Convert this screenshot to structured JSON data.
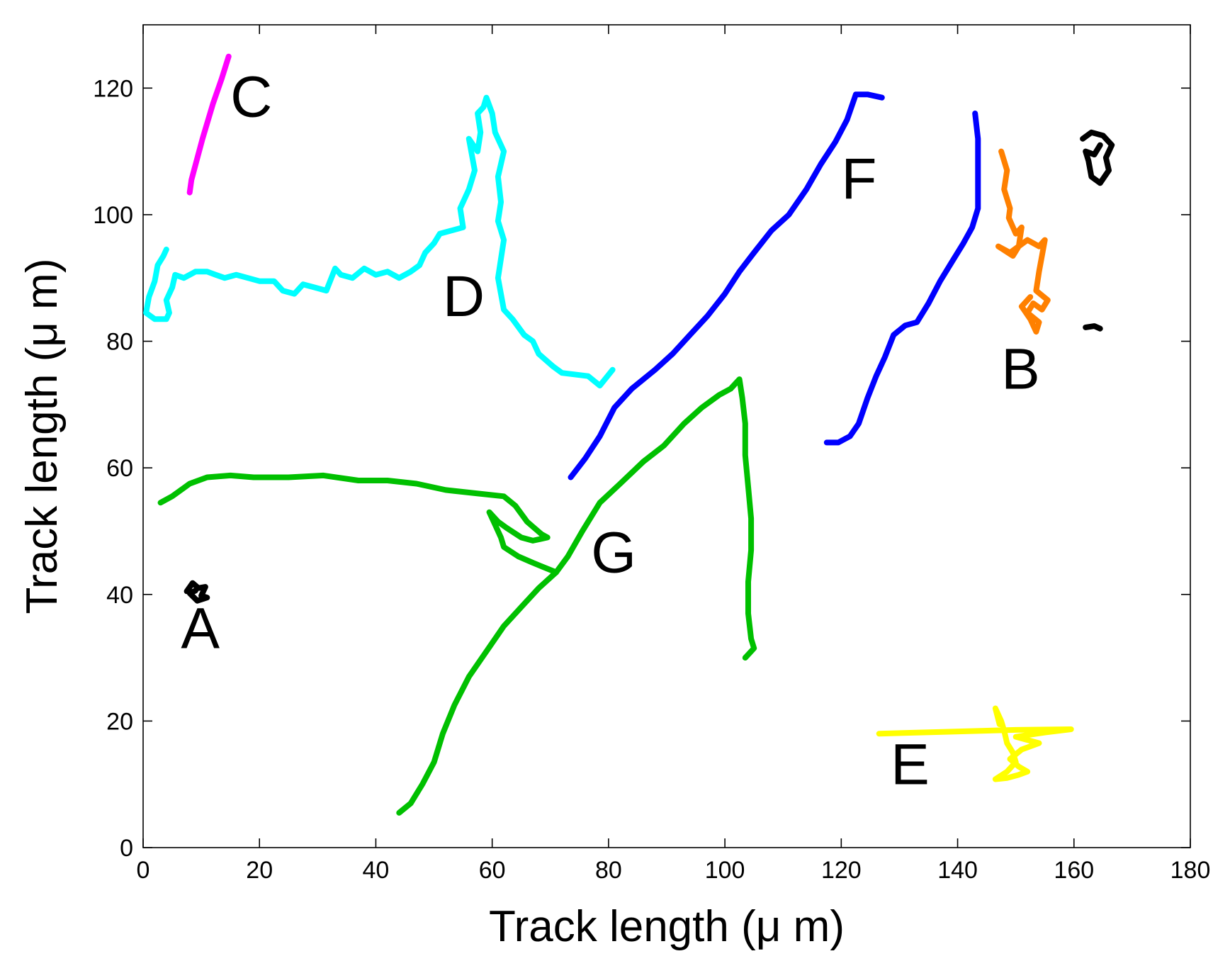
{
  "chart_data": {
    "type": "line",
    "title": "",
    "xlabel": "Track length (μ m)",
    "ylabel": "Track length (μ m)",
    "xlim": [
      0,
      180
    ],
    "ylim": [
      0,
      130
    ],
    "xticks": [
      0,
      20,
      40,
      60,
      80,
      100,
      120,
      140,
      160,
      180
    ],
    "yticks": [
      0,
      20,
      40,
      60,
      80,
      100,
      120
    ],
    "grid": false,
    "legend": "none",
    "series": [
      {
        "name": "A",
        "color": "#000000",
        "label_at": [
          6.5,
          31.5
        ],
        "points": [
          [
            7.5,
            40.5
          ],
          [
            8.5,
            41.8
          ],
          [
            9.5,
            41
          ],
          [
            10.7,
            41.2
          ],
          [
            10,
            39.8
          ],
          [
            11,
            39.5
          ],
          [
            9.3,
            39
          ],
          [
            8,
            40.2
          ],
          [
            9,
            40.6
          ]
        ]
      },
      {
        "name": "B",
        "color": "#ff8000",
        "label_at": [
          147.5,
          72.5
        ],
        "points": [
          [
            147.5,
            110
          ],
          [
            148.5,
            107
          ],
          [
            148,
            104
          ],
          [
            149,
            101
          ],
          [
            148.8,
            99.5
          ],
          [
            150,
            97
          ],
          [
            151,
            98
          ],
          [
            150.5,
            95
          ],
          [
            149.5,
            93.5
          ],
          [
            147,
            95
          ],
          [
            149,
            94
          ],
          [
            152,
            96
          ],
          [
            154,
            95
          ],
          [
            155,
            96
          ],
          [
            154,
            91
          ],
          [
            153.5,
            88
          ],
          [
            155.5,
            86.5
          ],
          [
            154.5,
            85
          ],
          [
            153,
            86
          ],
          [
            152,
            84.5
          ],
          [
            154,
            83
          ],
          [
            153.5,
            81.5
          ],
          [
            152.5,
            83.5
          ],
          [
            151,
            85.5
          ],
          [
            152.5,
            87
          ]
        ]
      },
      {
        "name": "C",
        "color": "#ff00ff",
        "label_at": [
          15,
          115.5
        ],
        "points": [
          [
            8,
            103.5
          ],
          [
            8.3,
            105.5
          ],
          [
            10.2,
            112
          ],
          [
            12,
            117.5
          ],
          [
            13.5,
            121.5
          ],
          [
            14.7,
            125
          ]
        ]
      },
      {
        "name": "D",
        "color": "#00ffff",
        "label_at": [
          51.5,
          84
        ],
        "points": [
          [
            80.7,
            75.5
          ],
          [
            78.5,
            73
          ],
          [
            76.5,
            74.5
          ],
          [
            72,
            75
          ],
          [
            70.5,
            76
          ],
          [
            68,
            78
          ],
          [
            67,
            80
          ],
          [
            65.5,
            81
          ],
          [
            63.5,
            83.5
          ],
          [
            62,
            85
          ],
          [
            61.5,
            87.5
          ],
          [
            61,
            90
          ],
          [
            61.5,
            93
          ],
          [
            62,
            96
          ],
          [
            61,
            99
          ],
          [
            61.5,
            102
          ],
          [
            61,
            106
          ],
          [
            62,
            110
          ],
          [
            60.5,
            113
          ],
          [
            60,
            116
          ],
          [
            59,
            118.5
          ],
          [
            58.5,
            117
          ],
          [
            57.5,
            116
          ],
          [
            58,
            113
          ],
          [
            57.5,
            110
          ],
          [
            56,
            112
          ],
          [
            57,
            107
          ],
          [
            56,
            104
          ],
          [
            54.5,
            101
          ],
          [
            55,
            98
          ],
          [
            53,
            97.5
          ],
          [
            51,
            97
          ],
          [
            50,
            95.5
          ],
          [
            48.5,
            94
          ],
          [
            47.5,
            92
          ],
          [
            46,
            91
          ],
          [
            44,
            90
          ],
          [
            42,
            91
          ],
          [
            40,
            90.5
          ],
          [
            38,
            91.5
          ],
          [
            36,
            90
          ],
          [
            34,
            90.5
          ],
          [
            33,
            91.5
          ],
          [
            31.5,
            88
          ],
          [
            29.5,
            88.5
          ],
          [
            27.5,
            89
          ],
          [
            26,
            87.5
          ],
          [
            24,
            88
          ],
          [
            22.5,
            89.5
          ],
          [
            20,
            89.5
          ],
          [
            18,
            90
          ],
          [
            16,
            90.5
          ],
          [
            14,
            90
          ],
          [
            12.5,
            90.5
          ],
          [
            11,
            91
          ],
          [
            9,
            91
          ],
          [
            7,
            90
          ],
          [
            5.5,
            90.5
          ],
          [
            5,
            88.5
          ],
          [
            4,
            86.5
          ],
          [
            4.5,
            84.5
          ],
          [
            4,
            83.5
          ],
          [
            2,
            83.5
          ],
          [
            0.5,
            84.5
          ],
          [
            1,
            87
          ],
          [
            2,
            89.5
          ],
          [
            2.5,
            92
          ],
          [
            3.5,
            93.5
          ],
          [
            4,
            94.5
          ]
        ]
      },
      {
        "name": "E",
        "color": "#ffff00",
        "label_at": [
          128.5,
          10
        ],
        "points": [
          [
            126.5,
            18
          ],
          [
            138,
            18.3
          ],
          [
            150,
            18.6
          ],
          [
            159.5,
            18.7
          ],
          [
            155,
            18.2
          ],
          [
            150,
            17.5
          ],
          [
            154,
            16.5
          ],
          [
            151,
            15.5
          ],
          [
            149,
            14
          ],
          [
            150.5,
            12.8
          ],
          [
            152,
            12
          ],
          [
            150.5,
            11.5
          ],
          [
            148.5,
            11
          ],
          [
            146.5,
            10.8
          ],
          [
            148.5,
            12
          ],
          [
            150,
            13.5
          ],
          [
            149.5,
            15
          ],
          [
            148.5,
            16.5
          ],
          [
            148,
            18.5
          ],
          [
            147.5,
            20
          ],
          [
            146.5,
            22
          ],
          [
            147.2,
            19.5
          ]
        ]
      },
      {
        "name": "F",
        "color": "#0000ff",
        "label_at": [
          120,
          102.5
        ],
        "points": [
          [
            73.5,
            58.5
          ],
          [
            76,
            61.5
          ],
          [
            78.5,
            65
          ],
          [
            81,
            69.5
          ],
          [
            84,
            72.5
          ],
          [
            88,
            75.5
          ],
          [
            91,
            78
          ],
          [
            94,
            81
          ],
          [
            97,
            84
          ],
          [
            100,
            87.5
          ],
          [
            102.5,
            91
          ],
          [
            105,
            94
          ],
          [
            108,
            97.5
          ],
          [
            111,
            100
          ],
          [
            114,
            104
          ],
          [
            116.5,
            108
          ],
          [
            119,
            111.5
          ],
          [
            121,
            115
          ],
          [
            122.5,
            119
          ],
          [
            124.5,
            119
          ],
          [
            127,
            118.5
          ]
        ]
      },
      {
        "name": "F",
        "color": "#0000ff",
        "label_at": null,
        "points": [
          [
            117.5,
            64
          ],
          [
            119.5,
            64
          ],
          [
            121.5,
            65
          ],
          [
            123,
            67
          ],
          [
            124.5,
            71
          ],
          [
            126,
            74.5
          ],
          [
            127.5,
            77.5
          ],
          [
            129,
            81
          ],
          [
            131,
            82.5
          ],
          [
            133,
            83
          ],
          [
            135,
            86
          ],
          [
            137,
            89.5
          ],
          [
            139,
            92.5
          ],
          [
            141,
            95.5
          ],
          [
            142.5,
            98
          ],
          [
            143.5,
            101
          ],
          [
            143.5,
            104
          ],
          [
            143.5,
            108
          ],
          [
            143.5,
            112
          ],
          [
            143,
            116
          ]
        ]
      },
      {
        "name": "G",
        "color": "#00c000",
        "label_at": [
          77,
          43.5
        ],
        "points": [
          [
            3,
            54.5
          ],
          [
            5,
            55.5
          ],
          [
            8,
            57.5
          ],
          [
            11,
            58.5
          ],
          [
            15,
            58.8
          ],
          [
            19,
            58.5
          ],
          [
            25,
            58.5
          ],
          [
            31,
            58.8
          ],
          [
            37,
            58
          ],
          [
            42,
            58
          ],
          [
            47,
            57.5
          ],
          [
            52,
            56.5
          ],
          [
            57,
            56
          ],
          [
            62,
            55.5
          ],
          [
            64,
            54
          ],
          [
            66,
            51.5
          ],
          [
            68.5,
            49.5
          ],
          [
            69.5,
            49
          ],
          [
            67,
            48.5
          ],
          [
            65,
            49
          ],
          [
            62.5,
            50.5
          ],
          [
            61,
            51.5
          ],
          [
            59.5,
            53
          ],
          [
            60.5,
            51
          ],
          [
            61.5,
            49
          ],
          [
            62,
            47.5
          ],
          [
            64.5,
            46
          ],
          [
            67,
            45
          ],
          [
            71,
            43.5
          ],
          [
            73,
            46
          ],
          [
            75.5,
            50
          ],
          [
            78.5,
            54.5
          ],
          [
            82,
            57.5
          ],
          [
            86,
            61
          ],
          [
            89.5,
            63.5
          ],
          [
            93,
            67
          ],
          [
            96,
            69.5
          ],
          [
            99,
            71.5
          ],
          [
            101,
            72.5
          ],
          [
            102.5,
            74
          ],
          [
            103,
            71
          ],
          [
            103.5,
            67
          ],
          [
            103.5,
            62
          ],
          [
            104,
            57
          ],
          [
            104.5,
            52
          ],
          [
            104.5,
            47
          ],
          [
            104,
            42
          ],
          [
            104,
            37
          ],
          [
            104.5,
            33
          ],
          [
            105,
            31.5
          ],
          [
            103.5,
            30
          ]
        ]
      },
      {
        "name": "G",
        "color": "#00c000",
        "label_at": null,
        "points": [
          [
            71,
            43.5
          ],
          [
            68,
            41
          ],
          [
            65,
            38
          ],
          [
            62,
            35
          ],
          [
            59,
            31
          ],
          [
            56,
            27
          ],
          [
            53.5,
            22.5
          ],
          [
            51.5,
            18
          ],
          [
            50,
            13.5
          ],
          [
            48,
            10
          ],
          [
            46,
            7
          ],
          [
            44,
            5.5
          ]
        ]
      },
      {
        "name": "",
        "color": "#000000",
        "label_at": null,
        "points": [
          [
            161.5,
            112
          ],
          [
            163,
            113
          ],
          [
            165,
            112.5
          ],
          [
            166.5,
            111
          ],
          [
            165.5,
            109
          ],
          [
            166,
            107
          ],
          [
            164.5,
            105
          ],
          [
            163,
            106
          ],
          [
            162.5,
            108.5
          ],
          [
            162,
            110
          ],
          [
            163.5,
            109.5
          ],
          [
            164.5,
            111
          ]
        ]
      },
      {
        "name": "",
        "color": "#000000",
        "label_at": null,
        "points": [
          [
            162,
            82.2
          ],
          [
            163.5,
            82.4
          ],
          [
            164.5,
            82
          ]
        ]
      }
    ]
  }
}
